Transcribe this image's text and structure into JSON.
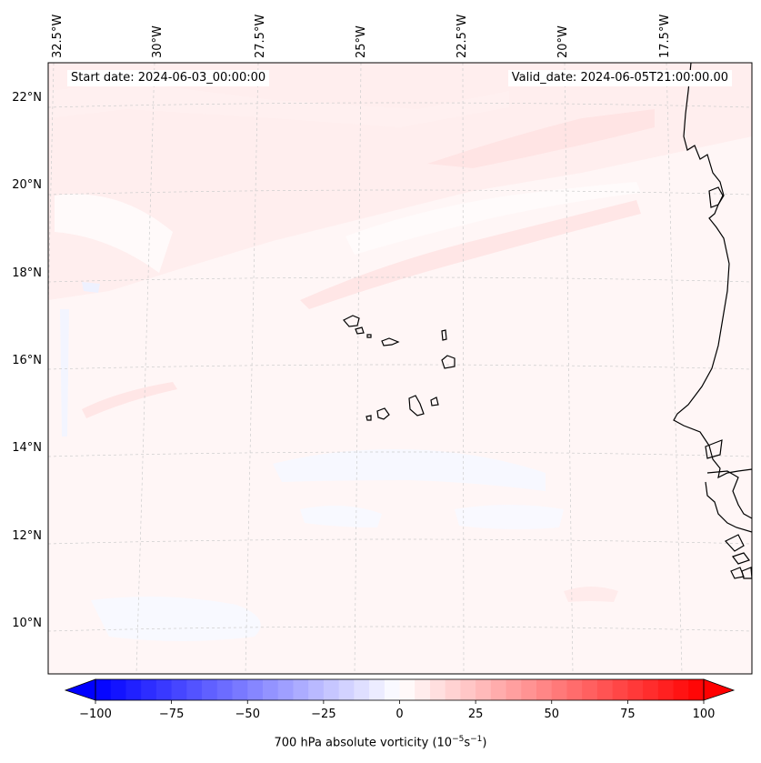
{
  "annotations": {
    "start_date": "Start date: 2024-06-03_00:00:00",
    "valid_date": "Valid_date: 2024-06-05T21:00:00.00"
  },
  "longitude_labels": [
    "32.5°W",
    "30°W",
    "27.5°W",
    "25°W",
    "22.5°W",
    "20°W",
    "17.5°W"
  ],
  "latitude_labels": [
    "22°N",
    "20°N",
    "18°N",
    "16°N",
    "14°N",
    "12°N",
    "10°N"
  ],
  "colorbar": {
    "label_parts": {
      "prefix": "700 hPa absolute vorticity (10",
      "exp1": "−5",
      "mid": "s",
      "exp2": "−1",
      "suffix": ")"
    },
    "ticks": [
      "−100",
      "−75",
      "−50",
      "−25",
      "0",
      "25",
      "50",
      "75",
      "100"
    ],
    "range": [
      -100,
      100
    ],
    "levels": 40,
    "colormap": "bwr",
    "extend": "both"
  },
  "colors": {
    "negative_end": "#0000ff",
    "zero": "#ffffff",
    "positive_end": "#ff0000",
    "coastline": "#000000",
    "gridline": "#cccccc"
  }
}
